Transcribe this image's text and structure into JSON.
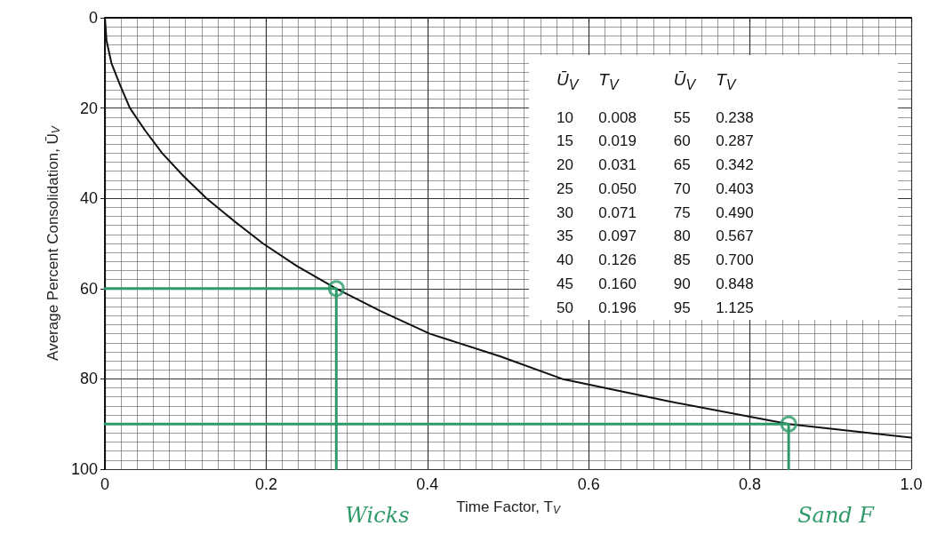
{
  "chart_data": {
    "type": "line",
    "xlabel": "Time Factor, T$_{V}$",
    "ylabel": "Average Percent Consolidation, Ū$_{V}$",
    "xlim": [
      0,
      1.0
    ],
    "ylim": [
      100,
      0
    ],
    "xticks": [
      0,
      0.2,
      0.4,
      0.6,
      0.8,
      {
        "value": 1.0,
        "label": "1.0"
      }
    ],
    "yticks": [
      0,
      20,
      40,
      60,
      80,
      100
    ],
    "grid": true,
    "series": [
      {
        "color": "#111111",
        "marker": "none",
        "x": [
          0,
          0.002,
          0.008,
          0.019,
          0.031,
          0.05,
          0.071,
          0.097,
          0.126,
          0.16,
          0.196,
          0.238,
          0.287,
          0.342,
          0.403,
          0.49,
          0.567,
          0.7,
          0.848,
          1.0
        ],
        "values": [
          0,
          5,
          10,
          15,
          20,
          25,
          30,
          35,
          40,
          45,
          50,
          55,
          60,
          65,
          70,
          75,
          80,
          85,
          90,
          93
        ]
      },
      {
        "color": "#2e9a6a",
        "marker": "none",
        "x": [
          0,
          0.287,
          0.287
        ],
        "values": [
          60,
          60,
          100
        ]
      },
      {
        "color": "#2e9a6a",
        "marker": "none",
        "x": [
          0,
          0.848,
          0.848
        ],
        "values": [
          90,
          90,
          100
        ]
      },
      {
        "type": "scatter",
        "color": "#2e9a6a",
        "marker": "circle",
        "x": [
          0.287,
          0.848
        ],
        "values": [
          60,
          90
        ]
      }
    ],
    "annotations": [
      "Ū$_{V}$",
      "T$_{V}$",
      "10 0.008",
      "15 0.019",
      "20 0.031",
      "25 0.050",
      "30 0.071",
      "35 0.097",
      "40 0.126",
      "45 0.160",
      "50 0.196",
      "55 0.238",
      "60 0.287",
      "65 0.342",
      "70 0.403",
      "75 0.490",
      "80 0.567",
      "85 0.700",
      "90 0.848",
      "95 1.125",
      {
        "text": "Wicks",
        "x": 0.287,
        "y": 100
      },
      {
        "text": "Sand F",
        "x": 0.848,
        "y": 100
      }
    ]
  }
}
